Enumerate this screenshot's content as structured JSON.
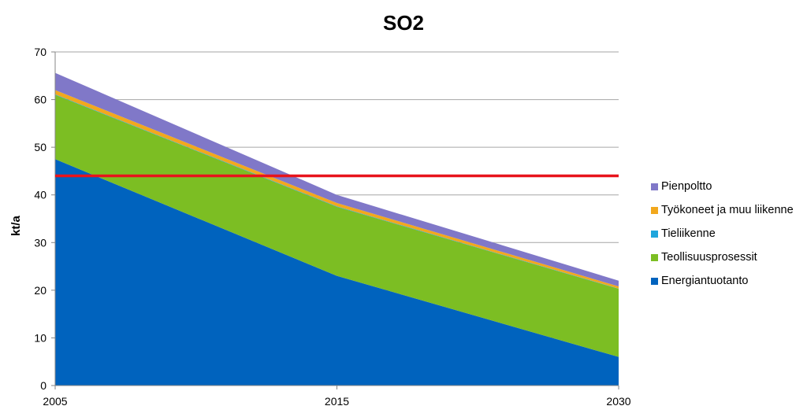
{
  "chart_data": {
    "type": "area",
    "title": "SO2",
    "ylabel": "kt/a",
    "xlabel": "",
    "ylim": [
      0,
      70
    ],
    "y_ticks": [
      0,
      10,
      20,
      30,
      40,
      50,
      60,
      70
    ],
    "x": [
      "2005",
      "2015",
      "2030"
    ],
    "stacked": true,
    "grid": true,
    "legend_position": "right",
    "series": [
      {
        "name": "Energiantuotanto",
        "color": "#0063BE",
        "values": [
          47.5,
          23,
          6
        ]
      },
      {
        "name": "Teollisuusprosessit",
        "color": "#7CBE23",
        "values": [
          13.5,
          14.5,
          14.3
        ]
      },
      {
        "name": "Tieliikenne",
        "color": "#1FA5DC",
        "values": [
          0.1,
          0.1,
          0.05
        ]
      },
      {
        "name": "Työkoneet ja muu liikenne",
        "color": "#F2A81D",
        "values": [
          0.9,
          0.7,
          0.45
        ]
      },
      {
        "name": "Pienpoltto",
        "color": "#8078C8",
        "values": [
          3.6,
          1.7,
          1.2
        ]
      }
    ],
    "legend_order": [
      "Pienpoltto",
      "Työkoneet ja muu liikenne",
      "Tieliikenne",
      "Teollisuusprosessit",
      "Energiantuotanto"
    ],
    "reference_line": {
      "value": 44,
      "color": "#E8141C"
    }
  }
}
